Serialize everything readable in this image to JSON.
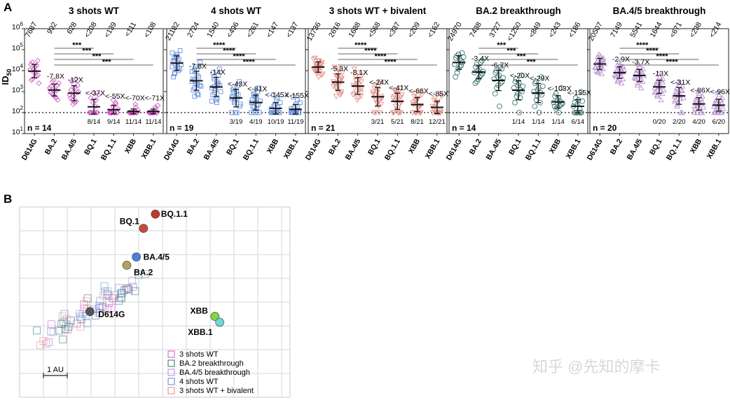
{
  "panel_a": {
    "letter": "A",
    "ylabel": "ID",
    "ylabel_sub": "50",
    "yticks": [
      {
        "base": "10",
        "exp": "1"
      },
      {
        "base": "10",
        "exp": "2"
      },
      {
        "base": "10",
        "exp": "3"
      },
      {
        "base": "10",
        "exp": "4"
      },
      {
        "base": "10",
        "exp": "5"
      },
      {
        "base": "10",
        "exp": "6"
      }
    ]
  },
  "chart_data": [
    {
      "type": "scatter",
      "title": "3 shots WT",
      "color": "#d04fc7",
      "marker": "diamond",
      "n_label": "n = 14",
      "categories": [
        "D614G",
        "BA.2",
        "BA.4/5",
        "BQ.1",
        "BQ.1.1",
        "XBB",
        "XBB.1"
      ],
      "gmt": [
        "7687",
        "992",
        "628",
        "<208",
        "<139",
        "<111",
        "<108"
      ],
      "fold": [
        "",
        "-7.8X",
        "-12X",
        "<-37X",
        "<-55X",
        "<-70X",
        "<-71X"
      ],
      "below_lod": [
        "",
        "",
        "",
        "8/14",
        "9/14",
        "11/14",
        "11/14"
      ],
      "stars": [
        "***",
        "***",
        "***",
        "***"
      ],
      "ylim": [
        10,
        1000000
      ],
      "lod": 100,
      "values": [
        [
          11000,
          25000,
          4000,
          15000,
          9000,
          30000,
          6000,
          20000,
          3500,
          12000,
          8000,
          5500,
          18000,
          2500
        ],
        [
          1500,
          800,
          3000,
          600,
          1200,
          2000,
          400,
          900,
          1800,
          700,
          3500,
          500,
          1100,
          2500
        ],
        [
          700,
          3000,
          400,
          1500,
          300,
          900,
          2000,
          500,
          1200,
          250,
          600,
          4000,
          350,
          1000
        ],
        [
          100,
          100,
          100,
          100,
          100,
          100,
          100,
          100,
          500,
          300,
          900,
          200,
          400,
          700
        ],
        [
          100,
          100,
          100,
          100,
          100,
          100,
          100,
          100,
          100,
          200,
          400,
          300,
          250,
          150
        ],
        [
          100,
          100,
          100,
          100,
          100,
          100,
          100,
          100,
          100,
          100,
          100,
          250,
          180,
          130
        ],
        [
          100,
          100,
          100,
          100,
          100,
          100,
          100,
          100,
          100,
          100,
          100,
          180,
          150,
          220
        ]
      ]
    },
    {
      "type": "scatter",
      "title": "4 shots WT",
      "color": "#5a8ad8",
      "marker": "square",
      "n_label": "n = 19",
      "categories": [
        "D614G",
        "BA.2",
        "BA.4/5",
        "BQ.1",
        "BQ.1.1",
        "XBB",
        "XBB.1"
      ],
      "gmt": [
        "21182",
        "2724",
        "1540",
        "<496",
        "<261",
        "<147",
        "<137"
      ],
      "fold": [
        "",
        "-7.8X",
        "-14X",
        "<-43X",
        "<-81X",
        "<-145X",
        "<-155X"
      ],
      "below_lod": [
        "",
        "",
        "",
        "3/19",
        "4/19",
        "10/19",
        "11/19"
      ],
      "stars": [
        "****",
        "****",
        "****",
        "****"
      ],
      "ylim": [
        10,
        1000000
      ],
      "lod": 100,
      "values": [
        [
          15000,
          40000,
          8000,
          60000,
          25000,
          12000,
          90000,
          30000,
          5000,
          18000,
          50000,
          10000,
          35000,
          20000,
          70000,
          7000,
          28000,
          45000,
          14000
        ],
        [
          3000,
          10000,
          1500,
          6000,
          800,
          2000,
          25000,
          4000,
          1200,
          15000,
          2500,
          700,
          5000,
          1800,
          9000,
          3500,
          600,
          12000,
          2200
        ],
        [
          1500,
          5000,
          900,
          3000,
          500,
          12000,
          2000,
          700,
          8000,
          1200,
          400,
          2500,
          6000,
          1000,
          350,
          4000,
          1800,
          300,
          2200
        ],
        [
          500,
          1500,
          300,
          800,
          100,
          3000,
          200,
          600,
          1200,
          100,
          400,
          2000,
          700,
          250,
          100,
          900,
          350,
          1000,
          450
        ],
        [
          300,
          800,
          100,
          500,
          150,
          1500,
          100,
          400,
          200,
          600,
          100,
          1000,
          250,
          350,
          100,
          700,
          180,
          450,
          220
        ],
        [
          100,
          100,
          100,
          100,
          100,
          100,
          100,
          100,
          100,
          100,
          250,
          500,
          180,
          300,
          150,
          700,
          200,
          400,
          130
        ],
        [
          100,
          100,
          100,
          100,
          100,
          100,
          100,
          100,
          100,
          100,
          100,
          400,
          200,
          300,
          150,
          550,
          170,
          250,
          130
        ]
      ]
    },
    {
      "type": "scatter",
      "title": "3 shots WT + bivalent",
      "color": "#e58a82",
      "marker": "triangle-down",
      "n_label": "n = 21",
      "categories": [
        "D614G",
        "BA.2",
        "BA.4/5",
        "BQ.1",
        "BQ.1.1",
        "XBB",
        "XBB.1"
      ],
      "gmt": [
        "13736",
        "2616",
        "1688",
        "<568",
        "<337",
        "<209",
        "<162"
      ],
      "fold": [
        "",
        "-5.3X",
        "-8.1X",
        "<-24X",
        "<-41X",
        "<-66X",
        "<-85X"
      ],
      "below_lod": [
        "",
        "",
        "",
        "3/21",
        "5/21",
        "8/21",
        "12/21"
      ],
      "stars": [
        "****",
        "****",
        "****",
        "****"
      ],
      "ylim": [
        10,
        1000000
      ],
      "lod": 100,
      "values": [
        [
          12000,
          20000,
          8000,
          30000,
          15000,
          6000,
          25000,
          10000,
          40000,
          18000,
          9000,
          14000,
          22000,
          7000,
          35000,
          11000,
          16000,
          5000,
          28000,
          13000,
          19000
        ],
        [
          3000,
          6000,
          1500,
          10000,
          2000,
          800,
          4000,
          15000,
          2500,
          1200,
          5000,
          3500,
          700,
          8000,
          1800,
          2200,
          600,
          12000,
          2800,
          1000,
          4500
        ],
        [
          2000,
          5000,
          1000,
          8000,
          1500,
          600,
          3000,
          12000,
          800,
          2500,
          400,
          4000,
          1200,
          6000,
          700,
          1800,
          3500,
          500,
          2200,
          900,
          1400
        ],
        [
          800,
          2000,
          400,
          1200,
          200,
          3000,
          600,
          100,
          1500,
          300,
          900,
          100,
          2500,
          500,
          1000,
          700,
          100,
          1800,
          350,
          450,
          250
        ],
        [
          500,
          1200,
          200,
          800,
          100,
          1500,
          300,
          100,
          600,
          400,
          1000,
          100,
          250,
          700,
          100,
          350,
          900,
          150,
          450,
          100,
          550
        ],
        [
          300,
          800,
          100,
          500,
          150,
          1000,
          100,
          250,
          600,
          100,
          400,
          100,
          200,
          700,
          100,
          350,
          100,
          450,
          180,
          100,
          220
        ],
        [
          200,
          500,
          100,
          300,
          100,
          800,
          100,
          150,
          400,
          100,
          250,
          100,
          100,
          600,
          100,
          180,
          100,
          350,
          100,
          120,
          100
        ]
      ]
    },
    {
      "type": "scatter",
      "title": "BA.2 breakthrough",
      "color": "#2f6f6a",
      "marker": "circle",
      "n_label": "n = 14",
      "categories": [
        "D614G",
        "BA.2",
        "BA.4/5",
        "BQ.1",
        "BQ.1.1",
        "XBB",
        "XBB.1"
      ],
      "gmt": [
        "24970",
        "7438",
        "3727",
        "<1250",
        "<849",
        "<243",
        "<186"
      ],
      "fold": [
        "",
        "-3.4X",
        "-6.7X",
        "<-20X",
        "<-29X",
        "<-103X",
        "<-135X"
      ],
      "below_lod": [
        "",
        "",
        "",
        "1/14",
        "1/14",
        "1/14",
        "6/14"
      ],
      "stars": [
        "***",
        "***",
        "***",
        "***"
      ],
      "ylim": [
        10,
        1000000
      ],
      "lod": 100,
      "values": [
        [
          20000,
          50000,
          8000,
          35000,
          15000,
          70000,
          25000,
          5000,
          40000,
          12000,
          60000,
          30000,
          18000,
          45000
        ],
        [
          8000,
          20000,
          3000,
          12000,
          5000,
          30000,
          7000,
          2500,
          15000,
          10000,
          4000,
          25000,
          6000,
          9000
        ],
        [
          4000,
          10000,
          1500,
          6000,
          200,
          12000,
          3000,
          800,
          8000,
          5000,
          2000,
          15000,
          2500,
          4500
        ],
        [
          1500,
          4000,
          600,
          2500,
          100,
          6000,
          1000,
          300,
          3000,
          800,
          2000,
          500,
          1200,
          1800
        ],
        [
          1000,
          3000,
          400,
          1500,
          100,
          5000,
          700,
          200,
          2500,
          600,
          1200,
          300,
          900,
          1800
        ],
        [
          300,
          800,
          150,
          500,
          100,
          1500,
          250,
          200,
          600,
          180,
          400,
          350,
          220,
          280
        ],
        [
          200,
          500,
          100,
          400,
          100,
          1000,
          100,
          100,
          300,
          100,
          250,
          150,
          100,
          350
        ]
      ]
    },
    {
      "type": "scatter",
      "title": "BA.4/5 breakthrough",
      "color": "#b68ad0",
      "marker": "triangle-up",
      "n_label": "n = 20",
      "categories": [
        "D614G",
        "BA.2",
        "BA.4/5",
        "BQ.1",
        "BQ.1.1",
        "XBB",
        "XBB.1"
      ],
      "gmt": [
        "20507",
        "7149",
        "5541",
        "1644",
        "<671",
        "<238",
        "<214"
      ],
      "fold": [
        "",
        "-2.9X",
        "-3.7X",
        "-13X",
        "<-31X",
        "<-86X",
        "<-96X"
      ],
      "below_lod": [
        "",
        "",
        "",
        "0/20",
        "2/20",
        "4/20",
        "6/20"
      ],
      "stars": [
        "****",
        "****",
        "****",
        "****"
      ],
      "ylim": [
        10,
        1000000
      ],
      "lod": 100,
      "values": [
        [
          15000,
          30000,
          8000,
          50000,
          20000,
          12000,
          40000,
          10000,
          25000,
          60000,
          18000,
          7000,
          35000,
          22000,
          14000,
          45000,
          9000,
          28000,
          16000,
          33000
        ],
        [
          6000,
          12000,
          3000,
          20000,
          8000,
          4000,
          15000,
          5000,
          10000,
          25000,
          7000,
          2500,
          9000,
          11000,
          6500,
          18000,
          3500,
          14000,
          5500,
          8500
        ],
        [
          5000,
          10000,
          2000,
          15000,
          7000,
          3000,
          12000,
          4000,
          8000,
          20000,
          6000,
          1500,
          9000,
          5500,
          4500,
          11000,
          2500,
          6500,
          3500,
          7500
        ],
        [
          1500,
          3000,
          600,
          5000,
          2000,
          800,
          4000,
          1000,
          2500,
          7000,
          1800,
          400,
          3500,
          1200,
          900,
          2200,
          700,
          1600,
          1100,
          2800
        ],
        [
          600,
          1500,
          200,
          2500,
          800,
          100,
          1800,
          400,
          1000,
          3000,
          700,
          100,
          1200,
          500,
          350,
          900,
          250,
          650,
          450,
          1100
        ],
        [
          200,
          500,
          100,
          800,
          300,
          100,
          600,
          150,
          400,
          1000,
          250,
          100,
          450,
          180,
          100,
          350,
          220,
          280,
          160,
          320
        ],
        [
          200,
          400,
          100,
          700,
          250,
          100,
          500,
          100,
          350,
          900,
          200,
          100,
          400,
          150,
          100,
          300,
          180,
          250,
          130,
          280
        ]
      ]
    }
  ],
  "panel_b": {
    "letter": "B",
    "scale_label": "1 AU",
    "points": [
      {
        "name": "BQ.1.1",
        "x": 5.7,
        "y": 7.7,
        "color": "#c0392b"
      },
      {
        "name": "BQ.1",
        "x": 5.2,
        "y": 7.1,
        "color": "#c64a3a"
      },
      {
        "name": "BA.4/5",
        "x": 4.9,
        "y": 5.9,
        "color": "#4f7fd6"
      },
      {
        "name": "BA.2",
        "x": 4.5,
        "y": 5.55,
        "color": "#b4a063"
      },
      {
        "name": "D614G",
        "x": 2.95,
        "y": 3.6,
        "color": "#555555"
      },
      {
        "name": "XBB",
        "x": 8.2,
        "y": 3.4,
        "color": "#86d34a"
      },
      {
        "name": "XBB.1",
        "x": 8.4,
        "y": 3.15,
        "color": "#6fd6d6"
      }
    ],
    "legend": [
      {
        "label": "3 shots WT",
        "color": "#d04fc7"
      },
      {
        "label": "BA.2 breakthrough",
        "color": "#2f6f6a"
      },
      {
        "label": "BA.4/5 breakthrough",
        "color": "#b68ad0"
      },
      {
        "label": "4 shots WT",
        "color": "#5a8ad8"
      },
      {
        "label": "3 shots WT + bivalent",
        "color": "#e58a82"
      }
    ]
  },
  "watermark": "知乎 @先知的摩卡"
}
